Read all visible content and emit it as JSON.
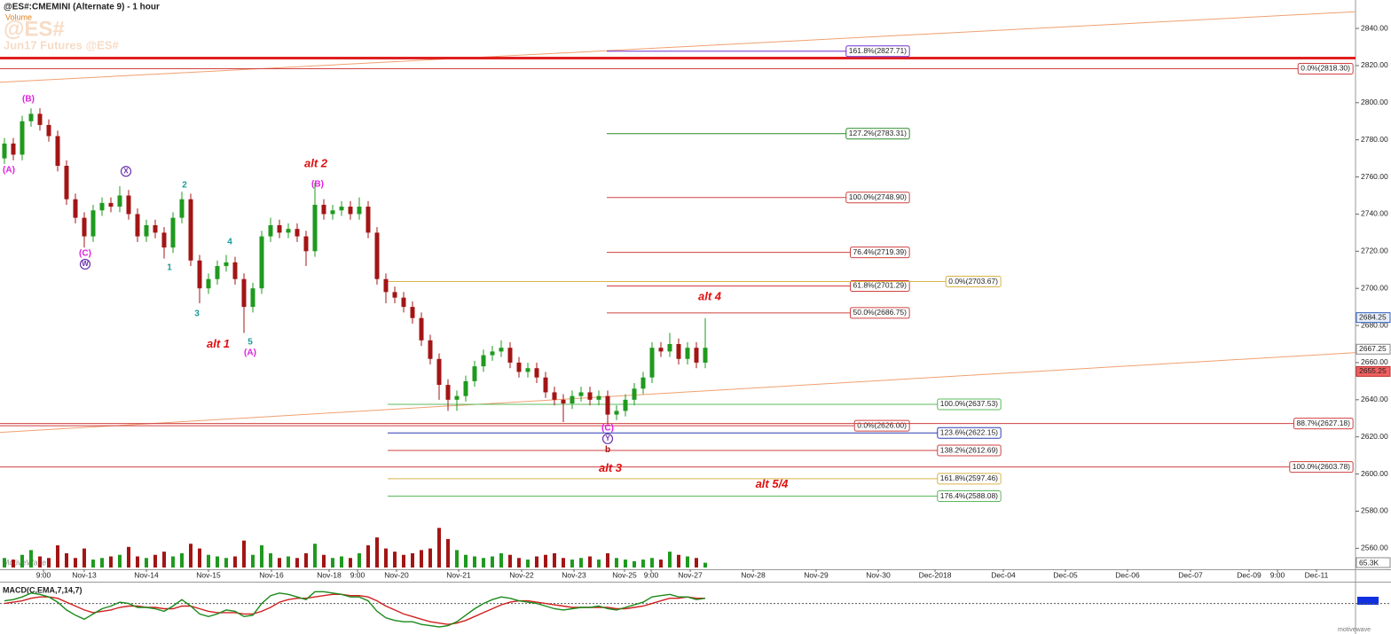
{
  "chart_data": {
    "type": "candlestick",
    "title": "@ES#:CMEMINI (Alternate 9) - 1 hour",
    "volume_title": "Volume",
    "watermark": "@ES#",
    "watermark_sub": "Jun17 Futures @ES#",
    "brand": "MotiveWave",
    "brand_small": "motivewave",
    "up_color": "#1f9a1f",
    "down_color": "#a31515",
    "open": [
      2770,
      2778,
      2772,
      2790,
      2794,
      2788,
      2782,
      2766,
      2748,
      2738,
      2728,
      2742,
      2746,
      2744,
      2750,
      2740,
      2728,
      2734,
      2730,
      2722,
      2738,
      2748,
      2715,
      2700,
      2705,
      2712,
      2714,
      2705,
      2690,
      2700,
      2728,
      2734,
      2730,
      2732,
      2728,
      2720,
      2745,
      2740,
      2742,
      2744,
      2740,
      2744,
      2730,
      2705,
      2698,
      2695,
      2690,
      2684,
      2672,
      2662,
      2648,
      2640,
      2642,
      2650,
      2658,
      2664,
      2666,
      2668,
      2660,
      2655,
      2657,
      2652,
      2644,
      2640,
      2638,
      2642,
      2644,
      2640,
      2642,
      2632,
      2634,
      2640,
      2646,
      2652,
      2668,
      2666,
      2670,
      2662,
      2668,
      2660
    ],
    "high": [
      2781,
      2781,
      2793,
      2797,
      2797,
      2791,
      2785,
      2769,
      2751,
      2741,
      2745,
      2749,
      2749,
      2755,
      2753,
      2743,
      2737,
      2737,
      2733,
      2741,
      2752,
      2751,
      2718,
      2708,
      2715,
      2718,
      2717,
      2708,
      2703,
      2731,
      2738,
      2737,
      2735,
      2735,
      2731,
      2757,
      2748,
      2745,
      2747,
      2747,
      2749,
      2747,
      2733,
      2708,
      2701,
      2698,
      2693,
      2687,
      2675,
      2665,
      2651,
      2645,
      2653,
      2661,
      2667,
      2669,
      2672,
      2671,
      2663,
      2660,
      2660,
      2655,
      2647,
      2643,
      2645,
      2647,
      2647,
      2645,
      2645,
      2637,
      2643,
      2649,
      2655,
      2671,
      2671,
      2676,
      2673,
      2671,
      2671,
      2684
    ],
    "low": [
      2767,
      2769,
      2769,
      2787,
      2785,
      2779,
      2763,
      2745,
      2735,
      2722,
      2725,
      2739,
      2741,
      2741,
      2737,
      2725,
      2725,
      2727,
      2716,
      2719,
      2735,
      2712,
      2692,
      2697,
      2702,
      2709,
      2702,
      2676,
      2687,
      2697,
      2725,
      2727,
      2727,
      2725,
      2712,
      2717,
      2737,
      2737,
      2739,
      2737,
      2737,
      2727,
      2702,
      2692,
      2692,
      2687,
      2681,
      2669,
      2659,
      2640,
      2634,
      2634,
      2639,
      2647,
      2655,
      2661,
      2663,
      2657,
      2652,
      2652,
      2649,
      2641,
      2637,
      2628,
      2635,
      2639,
      2637,
      2637,
      2627,
      2629,
      2631,
      2637,
      2643,
      2649,
      2663,
      2663,
      2659,
      2659,
      2657,
      2657
    ],
    "close": [
      2778,
      2772,
      2790,
      2794,
      2788,
      2782,
      2766,
      2748,
      2738,
      2728,
      2742,
      2746,
      2744,
      2750,
      2740,
      2728,
      2734,
      2730,
      2722,
      2738,
      2748,
      2715,
      2700,
      2705,
      2712,
      2714,
      2705,
      2690,
      2700,
      2728,
      2734,
      2730,
      2732,
      2728,
      2720,
      2745,
      2740,
      2742,
      2744,
      2740,
      2744,
      2730,
      2705,
      2698,
      2695,
      2690,
      2684,
      2672,
      2662,
      2648,
      2640,
      2642,
      2650,
      2658,
      2664,
      2666,
      2668,
      2660,
      2655,
      2657,
      2652,
      2644,
      2640,
      2638,
      2642,
      2644,
      2640,
      2642,
      2632,
      2634,
      2640,
      2646,
      2652,
      2668,
      2666,
      2670,
      2662,
      2668,
      2660,
      2668
    ],
    "volume": [
      30,
      25,
      40,
      55,
      35,
      30,
      70,
      45,
      30,
      60,
      25,
      30,
      35,
      40,
      65,
      35,
      30,
      40,
      50,
      35,
      45,
      75,
      60,
      40,
      35,
      30,
      35,
      85,
      40,
      70,
      45,
      30,
      35,
      30,
      45,
      75,
      40,
      30,
      35,
      30,
      45,
      70,
      95,
      60,
      50,
      40,
      45,
      55,
      60,
      125,
      90,
      55,
      40,
      35,
      30,
      35,
      45,
      40,
      30,
      25,
      35,
      40,
      45,
      30,
      25,
      30,
      35,
      25,
      45,
      30,
      25,
      20,
      25,
      30,
      25,
      50,
      40,
      35,
      30,
      15
    ],
    "volume_ylim": [
      0,
      140
    ],
    "volume_axis_label": "65.3K",
    "xlim": [
      0,
      152.8
    ],
    "xticks": [
      {
        "value": 4.9,
        "label": "9:00"
      },
      {
        "value": 9.5,
        "label": "Nov-13"
      },
      {
        "value": 16.5,
        "label": "Nov-14"
      },
      {
        "value": 23.5,
        "label": "Nov-15"
      },
      {
        "value": 30.6,
        "label": "Nov-16"
      },
      {
        "value": 37.1,
        "label": "Nov-18"
      },
      {
        "value": 40.3,
        "label": "9:00"
      },
      {
        "value": 44.7,
        "label": "Nov-20"
      },
      {
        "value": 51.7,
        "label": "Nov-21"
      },
      {
        "value": 58.8,
        "label": "Nov-22"
      },
      {
        "value": 64.7,
        "label": "Nov-23"
      },
      {
        "value": 70.4,
        "label": "Nov-25"
      },
      {
        "value": 73.4,
        "label": "9:00"
      },
      {
        "value": 77.8,
        "label": "Nov-27"
      },
      {
        "value": 84.9,
        "label": "Nov-28"
      },
      {
        "value": 92.0,
        "label": "Nov-29"
      },
      {
        "value": 99.0,
        "label": "Nov-30"
      },
      {
        "value": 105.4,
        "label": "Dec-2018"
      },
      {
        "value": 113.1,
        "label": "Dec-04"
      },
      {
        "value": 120.1,
        "label": "Dec-05"
      },
      {
        "value": 127.1,
        "label": "Dec-06"
      },
      {
        "value": 134.2,
        "label": "Dec-07"
      },
      {
        "value": 140.8,
        "label": "Dec-09"
      },
      {
        "value": 144.0,
        "label": "9:00"
      },
      {
        "value": 148.4,
        "label": "Dec-11"
      }
    ],
    "ylim": [
      2548.7,
      2855.3
    ],
    "yticks": [
      {
        "value": 2560,
        "label": "2560.00"
      },
      {
        "value": 2580,
        "label": "2580.00"
      },
      {
        "value": 2600,
        "label": "2600.00"
      },
      {
        "value": 2620,
        "label": "2620.00"
      },
      {
        "value": 2640,
        "label": "2640.00"
      },
      {
        "value": 2660,
        "label": "2660.00"
      },
      {
        "value": 2680,
        "label": "2680.00"
      },
      {
        "value": 2700,
        "label": "2700.00"
      },
      {
        "value": 2720,
        "label": "2720.00"
      },
      {
        "value": 2740,
        "label": "2740.00"
      },
      {
        "value": 2760,
        "label": "2760.00"
      },
      {
        "value": 2780,
        "label": "2780.00"
      },
      {
        "value": 2800,
        "label": "2800.00"
      },
      {
        "value": 2820,
        "label": "2820.00"
      },
      {
        "value": 2840,
        "label": "2840.00"
      }
    ],
    "levels": [
      {
        "label": "161.8%(2827.71)",
        "price": 2827.71,
        "from": 68.4,
        "to": 102.5,
        "color": "#7030d0"
      },
      {
        "label": "127.2%(2783.31)",
        "price": 2783.31,
        "from": 68.4,
        "to": 102.5,
        "color": "#2a8a2a"
      },
      {
        "label": "100.0%(2748.90)",
        "price": 2748.9,
        "from": 68.4,
        "to": 102.5,
        "color": "#d04040"
      },
      {
        "label": "76.4%(2719.39)",
        "price": 2719.39,
        "from": 68.4,
        "to": 102.5,
        "color": "#d04040"
      },
      {
        "label": "61.8%(2701.29)",
        "price": 2701.29,
        "from": 68.4,
        "to": 102.5,
        "color": "#d04040"
      },
      {
        "label": "50.0%(2686.75)",
        "price": 2686.75,
        "from": 68.4,
        "to": 102.5,
        "color": "#d04040"
      },
      {
        "label": "0.0%(2703.67)",
        "price": 2703.67,
        "from": 43.7,
        "to": 112.8,
        "color": "#d9b44a"
      },
      {
        "label": "100.0%(2637.53)",
        "price": 2637.53,
        "from": 43.7,
        "to": 112.8,
        "color": "#5cb85c"
      },
      {
        "label": "123.6%(2622.15)",
        "price": 2622.15,
        "from": 43.7,
        "to": 112.8,
        "color": "#2b3fb0"
      },
      {
        "label": "138.2%(2612.69)",
        "price": 2612.69,
        "from": 43.7,
        "to": 112.8,
        "color": "#d04040"
      },
      {
        "label": "161.8%(2597.46)",
        "price": 2597.46,
        "from": 43.7,
        "to": 112.8,
        "color": "#d9b44a"
      },
      {
        "label": "176.4%(2588.08)",
        "price": 2588.08,
        "from": 43.7,
        "to": 112.8,
        "color": "#5cb85c"
      },
      {
        "label": "0.0%(2626.00)",
        "price": 2626.0,
        "from": 0,
        "to": 102.5,
        "color": "#d04040"
      },
      {
        "label": "88.7%(2627.18)",
        "price": 2627.18,
        "from": 0,
        "to": 152.5,
        "color": "#d04040"
      },
      {
        "label": "0.0%(2818.30)",
        "price": 2818.3,
        "from": 0,
        "to": 152.5,
        "color": "#d04040"
      },
      {
        "label": "100.0%(2603.78)",
        "price": 2603.78,
        "from": 0,
        "to": 152.5,
        "color": "#d04040"
      }
    ],
    "resistance": {
      "price": 2824,
      "color": "#e02020"
    },
    "trendlines": [
      {
        "x": [
          0,
          152.8
        ],
        "y": [
          2811,
          2849
        ],
        "color": "#f0a070"
      },
      {
        "x": [
          0,
          152.8
        ],
        "y": [
          2622.4,
          2665.4
        ],
        "color": "#f0a070"
      }
    ],
    "waves": [
      {
        "text": "(A)",
        "x": 1.0,
        "price": 2763.7,
        "color": "#e020e0"
      },
      {
        "text": "(B)",
        "x": 3.2,
        "price": 2801.8,
        "color": "#e020e0"
      },
      {
        "text": "(C)",
        "x": 9.6,
        "price": 2718.8,
        "color": "#e020e0"
      },
      {
        "text": "W",
        "x": 9.6,
        "price": 2713,
        "color": "#6a2fb0",
        "circled": true
      },
      {
        "text": "X",
        "x": 14.2,
        "price": 2763,
        "color": "#6a2fb0",
        "circled": true
      },
      {
        "text": "2",
        "x": 20.8,
        "price": 2755.6,
        "color": "#1a9a9a"
      },
      {
        "text": "1",
        "x": 19.1,
        "price": 2711.2,
        "color": "#1a9a9a"
      },
      {
        "text": "4",
        "x": 25.9,
        "price": 2725,
        "color": "#1a9a9a"
      },
      {
        "text": "3",
        "x": 22.2,
        "price": 2686.4,
        "color": "#1a9a9a"
      },
      {
        "text": "5",
        "x": 28.2,
        "price": 2671.1,
        "color": "#1a9a9a"
      },
      {
        "text": "(A)",
        "x": 28.2,
        "price": 2665.4,
        "color": "#e020e0"
      },
      {
        "text": "alt 1",
        "x": 24.6,
        "price": 2669.7,
        "color": "#e01010",
        "emphasis": true
      },
      {
        "text": "alt 2",
        "x": 35.6,
        "price": 2767,
        "color": "#e01010",
        "emphasis": true
      },
      {
        "text": "(B)",
        "x": 35.8,
        "price": 2756,
        "color": "#e020e0"
      },
      {
        "text": "alt 4",
        "x": 80.0,
        "price": 2695.4,
        "color": "#e01010",
        "emphasis": true
      },
      {
        "text": "(C)",
        "x": 68.5,
        "price": 2624.8,
        "color": "#e020e0"
      },
      {
        "text": "Y",
        "x": 68.5,
        "price": 2619,
        "color": "#6a2fb0",
        "circled": true
      },
      {
        "text": "b",
        "x": 68.5,
        "price": 2613,
        "color": "#b01010"
      },
      {
        "text": "alt 3",
        "x": 68.8,
        "price": 2602.9,
        "color": "#e01010",
        "emphasis": true
      },
      {
        "text": "alt 5/4",
        "x": 87.0,
        "price": 2594.3,
        "color": "#e01010",
        "emphasis": true
      }
    ],
    "price_markers": [
      {
        "value": 2684.25,
        "color": "#e8eef8",
        "border": "#3060c0"
      },
      {
        "value": 2667.25,
        "color": "#ffffff",
        "border": "#888888"
      },
      {
        "value": 2655.25,
        "color": "#f06060",
        "border": "#c03030"
      }
    ],
    "macd": {
      "title": "MACD(C,EMA,7,14,7)",
      "ylim": [
        -22,
        16
      ],
      "macd_color": "#1a8a1a",
      "signal_color": "#d02020",
      "macd": [
        2,
        3,
        5,
        8,
        7,
        5,
        1,
        -5,
        -9,
        -12,
        -8,
        -4,
        -2,
        1,
        0,
        -3,
        -3,
        -4,
        -6,
        -2,
        3,
        -2,
        -8,
        -10,
        -8,
        -5,
        -6,
        -10,
        -9,
        0,
        6,
        8,
        7,
        5,
        3,
        9,
        9,
        8,
        7,
        5,
        5,
        2,
        -6,
        -11,
        -13,
        -14,
        -14,
        -16,
        -17,
        -18,
        -17,
        -14,
        -9,
        -4,
        0,
        3,
        5,
        4,
        2,
        1,
        0,
        -2,
        -4,
        -5,
        -4,
        -3,
        -3,
        -2,
        -4,
        -5,
        -3,
        -1,
        1,
        5,
        6,
        7,
        5,
        5,
        3,
        4
      ],
      "signal": [
        0,
        1,
        2,
        4,
        5,
        5,
        4,
        1,
        -2,
        -5,
        -7,
        -6,
        -5,
        -3,
        -2,
        -2,
        -3,
        -3,
        -4,
        -4,
        -2,
        -2,
        -4,
        -6,
        -7,
        -7,
        -7,
        -8,
        -8,
        -6,
        -3,
        1,
        3,
        4,
        4,
        5,
        6,
        7,
        7,
        6,
        6,
        5,
        2,
        -2,
        -5,
        -8,
        -10,
        -12,
        -14,
        -15,
        -16,
        -15,
        -13,
        -10,
        -7,
        -4,
        -1,
        1,
        2,
        2,
        1,
        0,
        -1,
        -2,
        -3,
        -3,
        -3,
        -3,
        -3,
        -4,
        -4,
        -3,
        -2,
        0,
        2,
        4,
        4,
        5,
        4,
        4
      ]
    }
  }
}
